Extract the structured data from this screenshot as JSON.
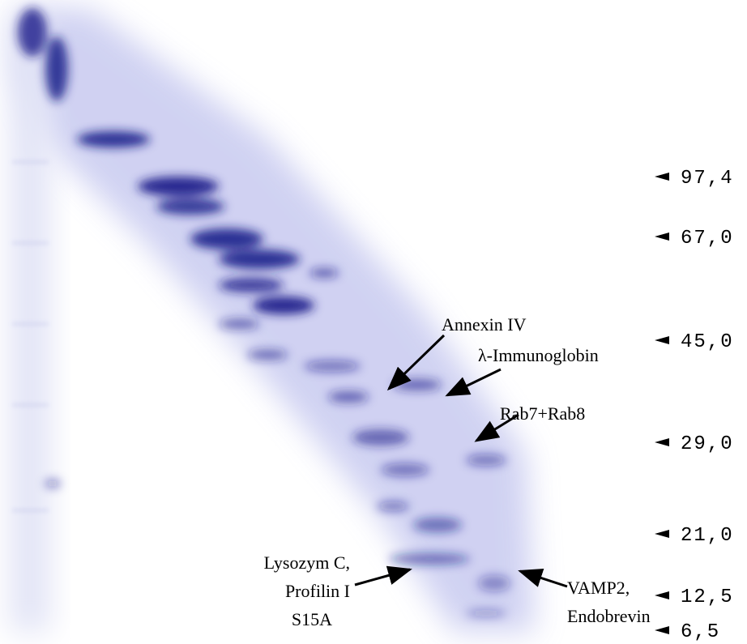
{
  "markers": [
    "97,4",
    "67,0",
    "45,0",
    "29,0",
    "21,0",
    "12,5",
    "6,5"
  ],
  "annotations": [
    {
      "lines": [
        "Annexin IV"
      ]
    },
    {
      "lines": [
        "λ-Immunoglobin"
      ]
    },
    {
      "lines": [
        "Rab7+Rab8"
      ]
    },
    {
      "lines": [
        "Lysozym C,",
        "Profilin I",
        "S15A"
      ]
    },
    {
      "lines": [
        "VAMP2,",
        "Endobrevin"
      ]
    }
  ]
}
